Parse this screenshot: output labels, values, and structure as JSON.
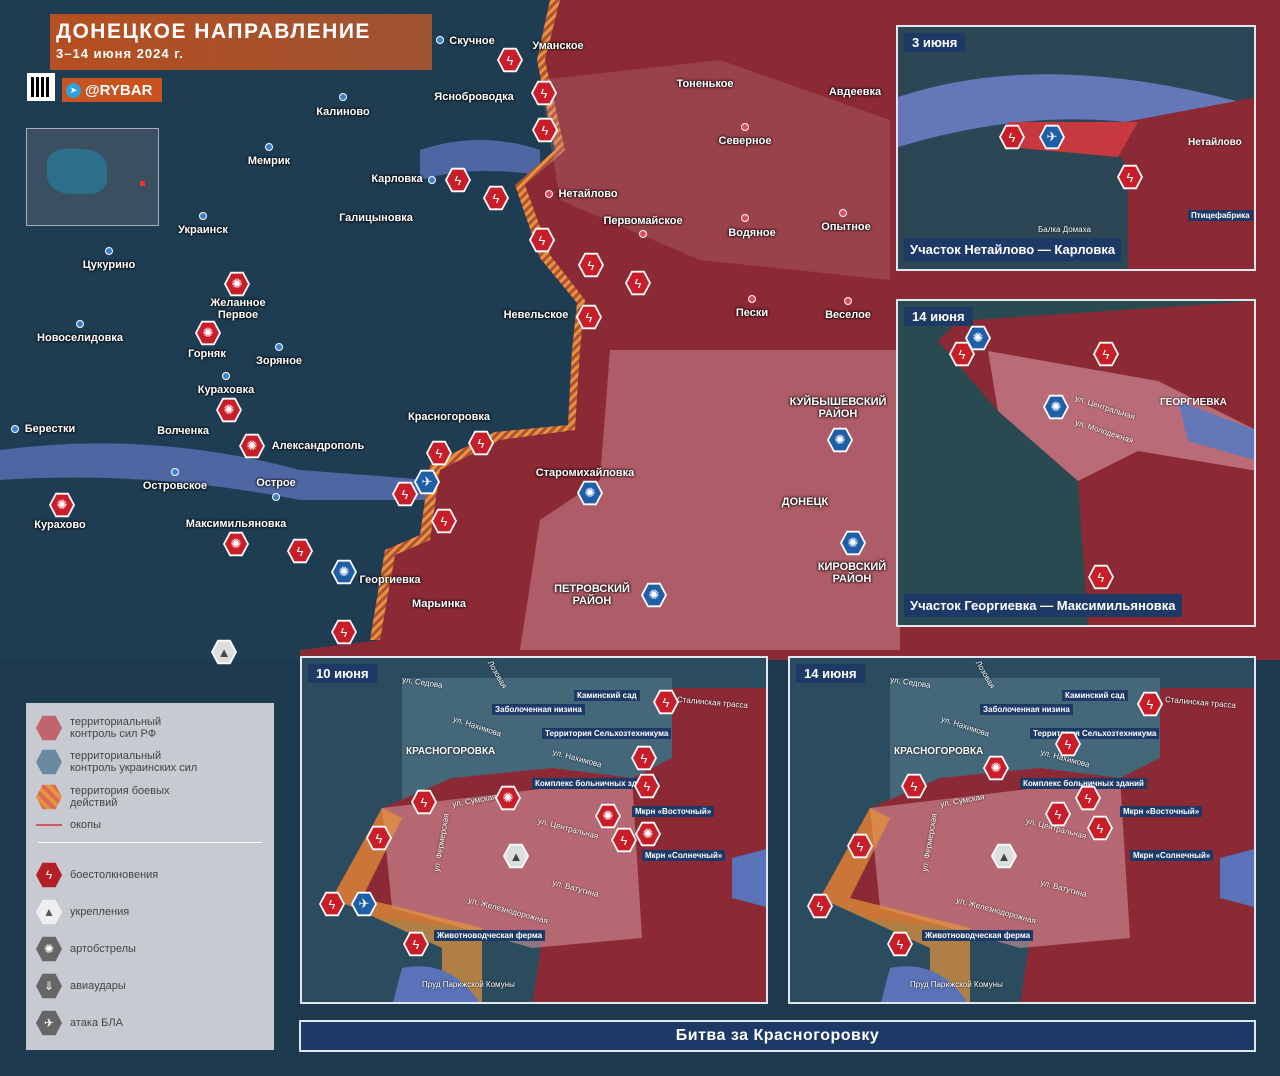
{
  "header": {
    "title": "ДОНЕЦКОЕ НАПРАВЛЕНИЕ",
    "dates": "3–14 июня 2024 г.",
    "channel": "@RYBAR"
  },
  "colors": {
    "russian_control": "#8b2a35",
    "ukrainian_control": "#1e3a4f",
    "combat_zone": "#e8953a",
    "accent_orange": "#c8531e",
    "strike": "#c81e2a",
    "ua_icon": "#1f5fa8"
  },
  "towns": [
    "Скучное",
    "Уманское",
    "Ясноброводка",
    "Калиново",
    "Тоненькое",
    "Авдеевка",
    "Северное",
    "Мемрик",
    "Карловка",
    "Нетайлово",
    "Галицыновка",
    "Первомайское",
    "Водяное",
    "Опытное",
    "Украинск",
    "Цукурино",
    "Желанное Первое",
    "Невельское",
    "Пески",
    "Веселое",
    "Новоселидовка",
    "Горняк",
    "Зоряное",
    "КУЙБЫШЕВСКИЙ РАЙОН",
    "Кураховка",
    "Красногоровка",
    "Берестки",
    "Волченка",
    "Александрополь",
    "Старомихайловка",
    "Островское",
    "Острое",
    "ДОНЕЦК",
    "Курахово",
    "Максимильяновка",
    "КИРОВСКИЙ РАЙОН",
    "Георгиевка",
    "ПЕТРОВСКИЙ РАЙОН",
    "Марьинка"
  ],
  "inset_a": {
    "date": "3 июня",
    "caption": "Участок Нетайлово — Карловка",
    "labels": [
      "Нетайлово",
      "Птицефабрика",
      "Балка Домаха"
    ]
  },
  "inset_b": {
    "date": "14 июня",
    "caption": "Участок Георгиевка — Максимильяновка",
    "labels": [
      "ГЕОРГИЕВКА",
      "ул. Центральная",
      "ул. Молодежная"
    ]
  },
  "inset_c": {
    "date": "10 июня"
  },
  "inset_d": {
    "date": "14 июня"
  },
  "krasno_labels": {
    "town": "КРАСНОГОРОВКА",
    "places": [
      "Каминский сад",
      "Заболоченная низина",
      "Территория Сельхозтехникума",
      "Комплекс больничных зданий",
      "Мкрн «Восточный»",
      "Мкрн «Солнечный»",
      "Животноводческая ферма"
    ],
    "streets": [
      "ул. Седова",
      "Лозовая",
      "ул. Нахимова",
      "ул. Нахимова",
      "ул. Сумская",
      "ул. Фермерская",
      "ул. Центральная",
      "ул. Ватутина",
      "ул. Железнодорожная",
      "Сталинская трасса",
      "Пруд Парижской Комуны"
    ]
  },
  "legend": {
    "items": [
      {
        "label": "территориальный контроль сил РФ",
        "icon": "hex-red"
      },
      {
        "label": "территориальный контроль украинских сил",
        "icon": "hex-blue"
      },
      {
        "label": "территория боевых действий",
        "icon": "hex-striped"
      },
      {
        "label": "окопы",
        "icon": "red-line"
      },
      {
        "label": "боестолкновения",
        "icon": "lightning-icon"
      },
      {
        "label": "укрепления",
        "icon": "fortification-icon"
      },
      {
        "label": "артобстрелы",
        "icon": "explosion-icon"
      },
      {
        "label": "авиаудары",
        "icon": "bomb-icon"
      },
      {
        "label": "атака БЛА",
        "icon": "drone-icon"
      }
    ]
  },
  "footer": {
    "title": "Битва за Красногоровку"
  }
}
